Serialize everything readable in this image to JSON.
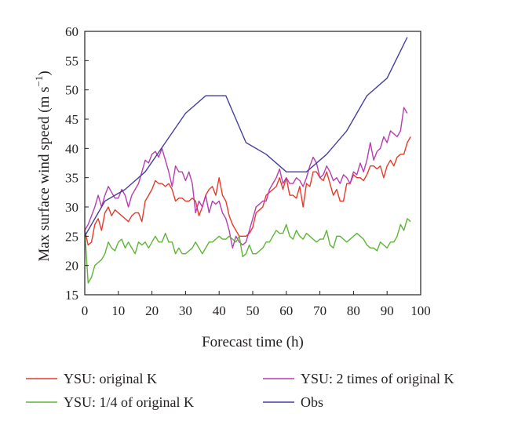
{
  "chart_data": {
    "type": "line",
    "xlabel": "Forecast time (h)",
    "ylabel": "Max surface wind speed (m s",
    "ylabel_sup": "−1",
    "ylabel_close": ")",
    "xlim": [
      0,
      100
    ],
    "ylim": [
      15,
      60
    ],
    "xticks": [
      0,
      10,
      20,
      30,
      40,
      50,
      60,
      70,
      80,
      90,
      100
    ],
    "yticks": [
      15,
      20,
      25,
      30,
      35,
      40,
      45,
      50,
      55,
      60
    ],
    "grid": false,
    "legend_position": "bottom",
    "series": [
      {
        "name": "YSU: original K",
        "color": "#e8392b",
        "points": [
          [
            0,
            26
          ],
          [
            1,
            23.5
          ],
          [
            2,
            24
          ],
          [
            3,
            27
          ],
          [
            4,
            28
          ],
          [
            5,
            26
          ],
          [
            6,
            29
          ],
          [
            7,
            30
          ],
          [
            8,
            28.5
          ],
          [
            9,
            29.5
          ],
          [
            10,
            29
          ],
          [
            11,
            28.5
          ],
          [
            12,
            28
          ],
          [
            13,
            27.5
          ],
          [
            14,
            28.5
          ],
          [
            15,
            29
          ],
          [
            16,
            29
          ],
          [
            17,
            27.5
          ],
          [
            18,
            31
          ],
          [
            19,
            32
          ],
          [
            20,
            33
          ],
          [
            21,
            34.5
          ],
          [
            22,
            34
          ],
          [
            23,
            34
          ],
          [
            24,
            33.5
          ],
          [
            25,
            34
          ],
          [
            26,
            33
          ],
          [
            27,
            31
          ],
          [
            28,
            31.5
          ],
          [
            29,
            31.5
          ],
          [
            30,
            31
          ],
          [
            31,
            31
          ],
          [
            32,
            31.5
          ],
          [
            33,
            31
          ],
          [
            34,
            28.5
          ],
          [
            35,
            30
          ],
          [
            36,
            32
          ],
          [
            37,
            33
          ],
          [
            38,
            33.5
          ],
          [
            39,
            32
          ],
          [
            40,
            35
          ],
          [
            41,
            32
          ],
          [
            42,
            31
          ],
          [
            43,
            28.5
          ],
          [
            44,
            27
          ],
          [
            45,
            26
          ],
          [
            46,
            25
          ],
          [
            47,
            25
          ],
          [
            48,
            25
          ],
          [
            49,
            25.5
          ],
          [
            50,
            26.5
          ],
          [
            51,
            29
          ],
          [
            52,
            29.5
          ],
          [
            53,
            30
          ],
          [
            54,
            32
          ],
          [
            55,
            32.5
          ],
          [
            56,
            33
          ],
          [
            57,
            33.5
          ],
          [
            58,
            35
          ],
          [
            59,
            33
          ],
          [
            60,
            35
          ],
          [
            61,
            32
          ],
          [
            62,
            32
          ],
          [
            63,
            31.5
          ],
          [
            64,
            33.5
          ],
          [
            65,
            30
          ],
          [
            66,
            34
          ],
          [
            67,
            33.5
          ],
          [
            68,
            36
          ],
          [
            69,
            36
          ],
          [
            70,
            35
          ],
          [
            71,
            34.5
          ],
          [
            72,
            36
          ],
          [
            73,
            34
          ],
          [
            74,
            32
          ],
          [
            75,
            33
          ],
          [
            76,
            31
          ],
          [
            77,
            31
          ],
          [
            78,
            34
          ],
          [
            79,
            34
          ],
          [
            80,
            35.5
          ],
          [
            81,
            35
          ],
          [
            82,
            35
          ],
          [
            83,
            34.5
          ],
          [
            84,
            35.5
          ],
          [
            85,
            37
          ],
          [
            86,
            37
          ],
          [
            87,
            36.5
          ],
          [
            88,
            37
          ],
          [
            89,
            35
          ],
          [
            90,
            37
          ],
          [
            91,
            38
          ],
          [
            92,
            37
          ],
          [
            93,
            38.5
          ],
          [
            94,
            39
          ],
          [
            95,
            39
          ],
          [
            96,
            41
          ],
          [
            97,
            42
          ]
        ]
      },
      {
        "name": "YSU: 2 times of original K",
        "color": "#b83db0",
        "points": [
          [
            0,
            26
          ],
          [
            1,
            27
          ],
          [
            2,
            28.5
          ],
          [
            3,
            30
          ],
          [
            4,
            32
          ],
          [
            5,
            30
          ],
          [
            6,
            32
          ],
          [
            7,
            33.5
          ],
          [
            8,
            32.5
          ],
          [
            9,
            31.5
          ],
          [
            10,
            31.5
          ],
          [
            11,
            33
          ],
          [
            12,
            32
          ],
          [
            13,
            30
          ],
          [
            14,
            32
          ],
          [
            15,
            33
          ],
          [
            16,
            34
          ],
          [
            17,
            36
          ],
          [
            18,
            38
          ],
          [
            19,
            37.5
          ],
          [
            20,
            39
          ],
          [
            21,
            39.5
          ],
          [
            22,
            38.5
          ],
          [
            23,
            40
          ],
          [
            24,
            38
          ],
          [
            25,
            36
          ],
          [
            26,
            33.5
          ],
          [
            27,
            37
          ],
          [
            28,
            36
          ],
          [
            29,
            36
          ],
          [
            30,
            34.5
          ],
          [
            31,
            36
          ],
          [
            32,
            34
          ],
          [
            33,
            29
          ],
          [
            34,
            31
          ],
          [
            35,
            30
          ],
          [
            36,
            32
          ],
          [
            37,
            29
          ],
          [
            38,
            31
          ],
          [
            39,
            30.5
          ],
          [
            40,
            31
          ],
          [
            41,
            29
          ],
          [
            42,
            28
          ],
          [
            43,
            26
          ],
          [
            44,
            23
          ],
          [
            45,
            25
          ],
          [
            46,
            24
          ],
          [
            47,
            23.5
          ],
          [
            48,
            24
          ],
          [
            49,
            26
          ],
          [
            50,
            28
          ],
          [
            51,
            30
          ],
          [
            52,
            30.5
          ],
          [
            53,
            31
          ],
          [
            54,
            31
          ],
          [
            55,
            33
          ],
          [
            56,
            34
          ],
          [
            57,
            35
          ],
          [
            58,
            36.5
          ],
          [
            59,
            34
          ],
          [
            60,
            35
          ],
          [
            61,
            34
          ],
          [
            62,
            34
          ],
          [
            63,
            35
          ],
          [
            64,
            34.5
          ],
          [
            65,
            33.5
          ],
          [
            66,
            35
          ],
          [
            67,
            37
          ],
          [
            68,
            38.5
          ],
          [
            69,
            37.5
          ],
          [
            70,
            35
          ],
          [
            71,
            35.5
          ],
          [
            72,
            37
          ],
          [
            73,
            36
          ],
          [
            74,
            34.5
          ],
          [
            75,
            35
          ],
          [
            76,
            34
          ],
          [
            77,
            35.5
          ],
          [
            78,
            35
          ],
          [
            79,
            34
          ],
          [
            80,
            36
          ],
          [
            81,
            35.5
          ],
          [
            82,
            37.5
          ],
          [
            83,
            36
          ],
          [
            84,
            38
          ],
          [
            85,
            41
          ],
          [
            86,
            38
          ],
          [
            87,
            39.5
          ],
          [
            88,
            40
          ],
          [
            89,
            42
          ],
          [
            90,
            41
          ],
          [
            91,
            43
          ],
          [
            92,
            42.5
          ],
          [
            93,
            42
          ],
          [
            94,
            43
          ],
          [
            95,
            47
          ],
          [
            96,
            46
          ]
        ]
      },
      {
        "name": "YSU: 1/4 of original K",
        "color": "#5cb535",
        "points": [
          [
            0,
            26
          ],
          [
            1,
            17
          ],
          [
            2,
            18
          ],
          [
            3,
            20
          ],
          [
            4,
            20.5
          ],
          [
            5,
            21
          ],
          [
            6,
            22
          ],
          [
            7,
            24
          ],
          [
            8,
            23
          ],
          [
            9,
            22.5
          ],
          [
            10,
            24
          ],
          [
            11,
            24.5
          ],
          [
            12,
            23
          ],
          [
            13,
            24
          ],
          [
            14,
            23
          ],
          [
            15,
            22
          ],
          [
            16,
            24
          ],
          [
            17,
            23.5
          ],
          [
            18,
            24
          ],
          [
            19,
            23
          ],
          [
            20,
            24
          ],
          [
            21,
            25
          ],
          [
            22,
            24
          ],
          [
            23,
            24
          ],
          [
            24,
            25.5
          ],
          [
            25,
            24
          ],
          [
            26,
            24
          ],
          [
            27,
            22
          ],
          [
            28,
            23
          ],
          [
            29,
            22
          ],
          [
            30,
            22
          ],
          [
            31,
            22.5
          ],
          [
            32,
            23
          ],
          [
            33,
            24
          ],
          [
            34,
            23
          ],
          [
            35,
            22
          ],
          [
            36,
            23
          ],
          [
            37,
            24
          ],
          [
            38,
            24
          ],
          [
            39,
            24.5
          ],
          [
            40,
            25
          ],
          [
            41,
            24.5
          ],
          [
            42,
            24.5
          ],
          [
            43,
            25
          ],
          [
            44,
            24.5
          ],
          [
            45,
            24
          ],
          [
            46,
            25
          ],
          [
            47,
            21.5
          ],
          [
            48,
            22
          ],
          [
            49,
            23.5
          ],
          [
            50,
            22
          ],
          [
            51,
            22
          ],
          [
            52,
            22.5
          ],
          [
            53,
            23
          ],
          [
            54,
            24
          ],
          [
            55,
            24
          ],
          [
            56,
            25
          ],
          [
            57,
            26
          ],
          [
            58,
            25.5
          ],
          [
            59,
            25.5
          ],
          [
            60,
            27
          ],
          [
            61,
            25
          ],
          [
            62,
            24.5
          ],
          [
            63,
            26
          ],
          [
            64,
            25
          ],
          [
            65,
            24.5
          ],
          [
            66,
            25.5
          ],
          [
            67,
            25
          ],
          [
            68,
            24.5
          ],
          [
            69,
            24
          ],
          [
            70,
            24.5
          ],
          [
            71,
            24.5
          ],
          [
            72,
            26
          ],
          [
            73,
            23.5
          ],
          [
            74,
            23
          ],
          [
            75,
            25
          ],
          [
            76,
            25
          ],
          [
            77,
            24.5
          ],
          [
            78,
            24
          ],
          [
            79,
            24.5
          ],
          [
            80,
            25
          ],
          [
            81,
            25.5
          ],
          [
            82,
            25
          ],
          [
            83,
            24.5
          ],
          [
            84,
            23.5
          ],
          [
            85,
            23
          ],
          [
            86,
            23
          ],
          [
            87,
            22.5
          ],
          [
            88,
            24
          ],
          [
            89,
            23.5
          ],
          [
            90,
            23
          ],
          [
            91,
            24
          ],
          [
            92,
            24
          ],
          [
            93,
            25
          ],
          [
            94,
            27
          ],
          [
            95,
            26
          ],
          [
            96,
            28
          ],
          [
            97,
            27.5
          ]
        ]
      },
      {
        "name": "Obs",
        "color": "#463fa0",
        "points": [
          [
            0,
            25
          ],
          [
            6,
            31
          ],
          [
            12,
            33
          ],
          [
            18,
            36
          ],
          [
            24,
            41
          ],
          [
            30,
            46
          ],
          [
            36,
            49
          ],
          [
            42,
            49
          ],
          [
            48,
            41
          ],
          [
            54,
            39
          ],
          [
            60,
            36
          ],
          [
            66,
            36
          ],
          [
            72,
            39
          ],
          [
            78,
            43
          ],
          [
            84,
            49
          ],
          [
            90,
            52
          ],
          [
            96,
            59
          ]
        ]
      }
    ]
  }
}
